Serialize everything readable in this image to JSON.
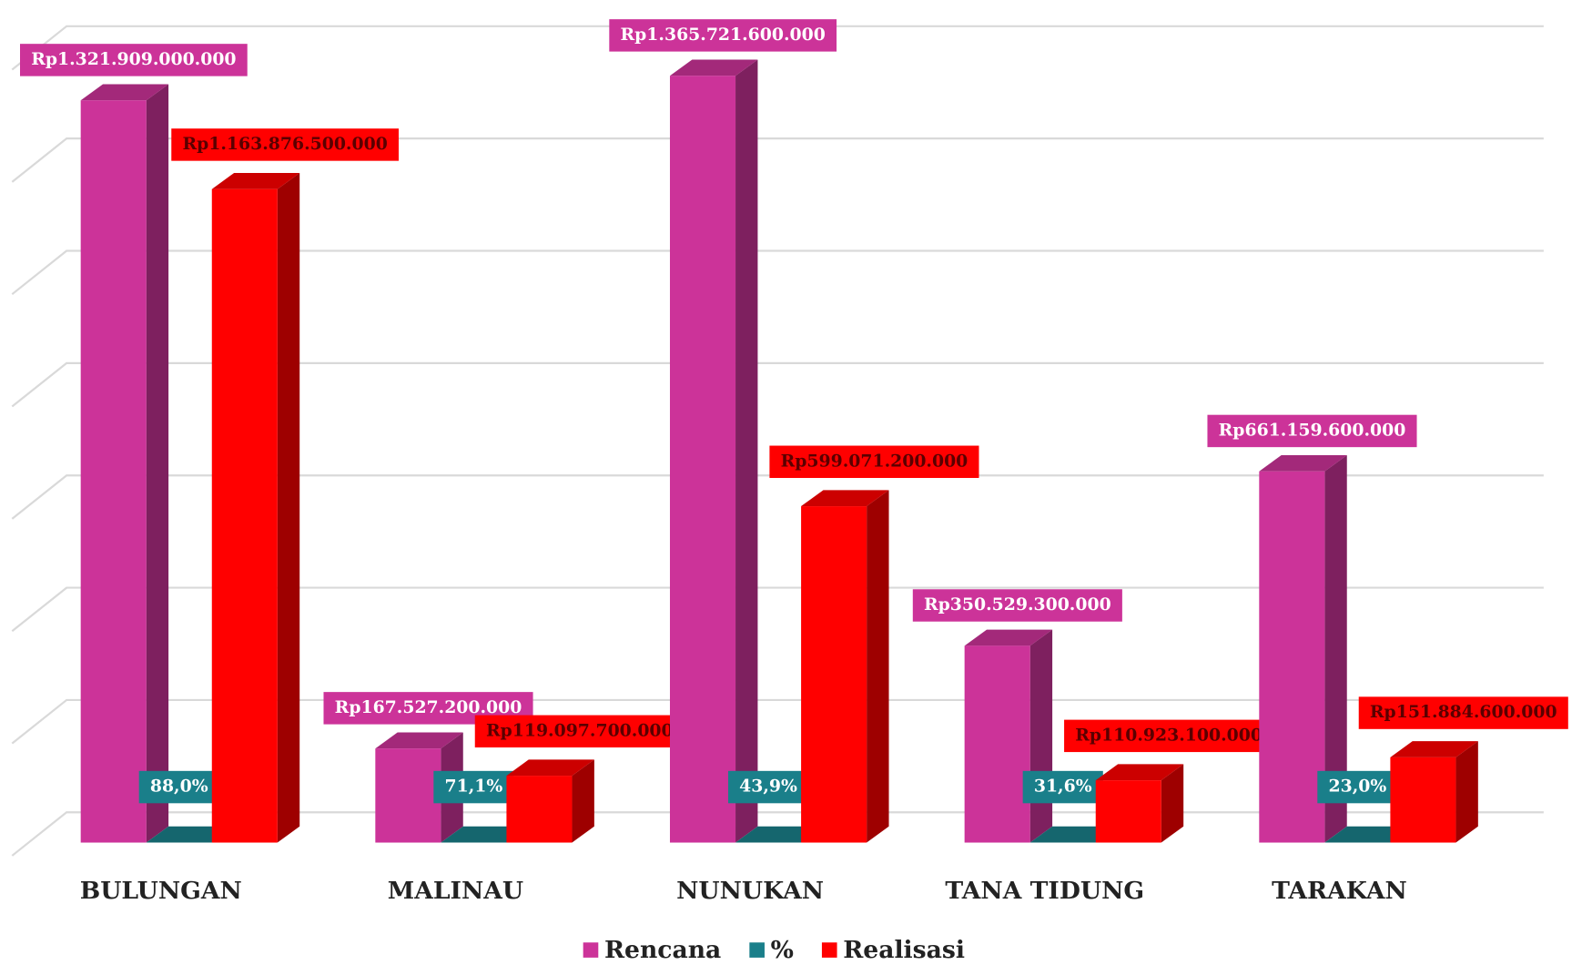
{
  "chart_data": {
    "type": "bar3d",
    "categories": [
      "BULUNGAN",
      "MALINAU",
      "NUNUKAN",
      "TANA TIDUNG",
      "TARAKAN"
    ],
    "series": [
      {
        "name": "Rencana",
        "color": "#cc3399",
        "values": [
          1321909000000,
          167527200000,
          1365721600000,
          350529300000,
          661159600000
        ],
        "value_labels": [
          "Rp1.321.909.000.000",
          "Rp167.527.200.000",
          "Rp1.365.721.600.000",
          "Rp350.529.300.000",
          "Rp661.159.600.000"
        ]
      },
      {
        "name": "%",
        "color": "#1a7f8a",
        "values": [
          88.0,
          71.1,
          43.9,
          31.6,
          23.0
        ],
        "value_labels": [
          "88,0%",
          "71,1%",
          "43,9%",
          "31,6%",
          "23,0%"
        ]
      },
      {
        "name": "Realisasi",
        "color": "#ff0000",
        "values": [
          1163876500000,
          119097700000,
          599071200000,
          110923100000,
          151884600000
        ],
        "value_labels": [
          "Rp1.163.876.500.000",
          "Rp119.097.700.000",
          "Rp599.071.200.000",
          "Rp110.923.100.000",
          "Rp151.884.600.000"
        ]
      }
    ],
    "ylim": [
      0,
      1400000000000
    ],
    "yticks": [
      0,
      200000000000,
      400000000000,
      600000000000,
      800000000000,
      1000000000000,
      1200000000000,
      1400000000000
    ],
    "grid": true,
    "legend": "bottom"
  }
}
